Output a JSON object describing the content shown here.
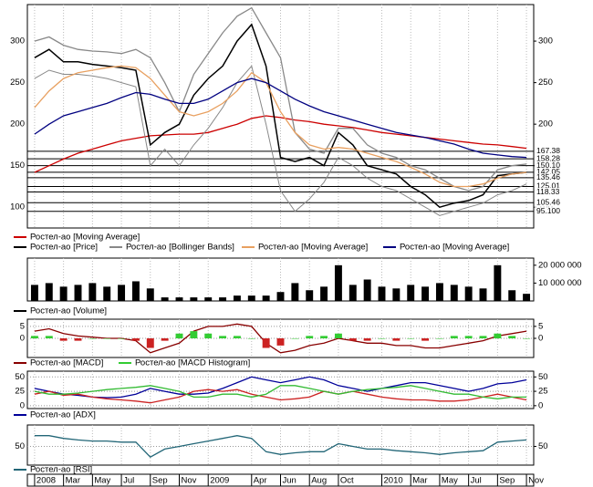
{
  "chart_data": [
    {
      "type": "line",
      "ylim": [
        75,
        344
      ],
      "yticks": [
        100,
        150,
        200,
        250,
        300
      ],
      "levels": [
        167.38,
        158.28,
        {
          "value": 150.1,
          "label": "150.10"
        },
        142.05,
        135.46,
        125.01,
        118.33,
        105.46,
        {
          "value": 95.1,
          "label": "95.100"
        }
      ],
      "series": [
        {
          "name": "Ростел-ао [Moving Average]",
          "color": "#cc0000",
          "values": [
            142,
            150,
            158,
            165,
            170,
            175,
            180,
            183,
            186,
            187,
            188,
            188,
            190,
            195,
            200,
            207,
            210,
            208,
            205,
            203,
            200,
            198,
            196,
            193,
            190,
            188,
            186,
            184,
            182,
            180,
            178,
            176,
            175,
            173,
            171
          ]
        },
        {
          "name": "Ростел-ао [Price]",
          "color": "#000000",
          "values": [
            280,
            290,
            275,
            275,
            272,
            270,
            268,
            265,
            175,
            190,
            200,
            235,
            255,
            270,
            300,
            320,
            270,
            160,
            155,
            160,
            150,
            190,
            175,
            150,
            145,
            140,
            125,
            115,
            100,
            105,
            108,
            115,
            138,
            140,
            142
          ]
        },
        {
          "name": "Ростел-ао [Bollinger Bands]",
          "color": "#888888",
          "values": [
            300,
            305,
            295,
            290,
            288,
            287,
            285,
            290,
            280,
            250,
            215,
            260,
            285,
            310,
            330,
            340,
            310,
            280,
            190,
            170,
            165,
            195,
            195,
            175,
            165,
            160,
            150,
            145,
            135,
            125,
            120,
            125,
            145,
            150,
            152
          ],
          "lower": [
            255,
            265,
            260,
            260,
            258,
            255,
            250,
            245,
            150,
            170,
            150,
            175,
            195,
            220,
            250,
            270,
            200,
            120,
            95,
            110,
            130,
            160,
            150,
            135,
            125,
            120,
            110,
            100,
            90,
            95,
            100,
            105,
            115,
            120,
            128
          ]
        },
        {
          "name": "Ростел-ао [Moving Average]",
          "color": "#e8a060",
          "values": [
            220,
            240,
            255,
            262,
            265,
            268,
            270,
            268,
            255,
            235,
            215,
            210,
            215,
            225,
            240,
            262,
            250,
            215,
            190,
            175,
            170,
            172,
            170,
            165,
            160,
            155,
            148,
            140,
            130,
            125,
            125,
            128,
            135,
            140,
            142
          ]
        },
        {
          "name": "Ростел-ао [Moving Average]",
          "color": "#000080",
          "values": [
            188,
            200,
            210,
            215,
            220,
            225,
            232,
            238,
            236,
            230,
            225,
            225,
            230,
            240,
            250,
            255,
            250,
            240,
            230,
            222,
            215,
            210,
            205,
            200,
            195,
            190,
            187,
            184,
            180,
            176,
            170,
            165,
            163,
            161,
            160
          ]
        }
      ]
    },
    {
      "type": "bar",
      "ylim": [
        0,
        24000000
      ],
      "yticks": [
        {
          "value": 10000000,
          "label": "10 000 000"
        },
        {
          "value": 20000000,
          "label": "20 000 000"
        }
      ],
      "series": [
        {
          "name": "Ростел-ао [Volume]",
          "color": "#000000",
          "values": [
            9000000,
            10000000,
            8000000,
            9000000,
            10000000,
            8000000,
            9000000,
            11000000,
            7000000,
            2000000,
            2000000,
            2000000,
            2000000,
            2000000,
            3000000,
            3000000,
            3000000,
            5000000,
            10000000,
            6000000,
            8000000,
            20000000,
            9000000,
            12000000,
            8000000,
            7000000,
            9000000,
            8000000,
            10000000,
            9000000,
            8000000,
            7000000,
            20000000,
            6000000,
            4000000
          ]
        }
      ]
    },
    {
      "type": "combo",
      "ylim": [
        -8,
        8
      ],
      "yticks": [
        0,
        5
      ],
      "series": [
        {
          "name": "Ростел-ао [MACD]",
          "color": "#880000",
          "values": [
            3,
            4,
            2,
            1,
            0.5,
            0,
            0,
            -1,
            -6,
            -4,
            -2,
            3,
            5,
            5,
            6,
            5,
            -2,
            -6,
            -5,
            -3,
            -2,
            0,
            -1,
            -2,
            -2,
            -3,
            -3,
            -4,
            -4,
            -3,
            -2,
            -1,
            1,
            2,
            3
          ]
        },
        {
          "name": "Ростел-ао [MACD Histogram]",
          "type": "bar",
          "color": "#33cc33",
          "negative_color": "#cc2222",
          "values": [
            1,
            1,
            -1,
            -1,
            0,
            0,
            0,
            -1,
            -4,
            -1,
            2,
            3,
            2,
            1,
            1,
            0,
            -4,
            -3,
            0,
            1,
            1,
            2,
            -1,
            -1,
            0,
            -1,
            0,
            -1,
            0,
            1,
            1,
            1,
            2,
            1,
            0
          ]
        }
      ]
    },
    {
      "type": "line",
      "ylim": [
        -5,
        60
      ],
      "yticks": [
        0,
        25,
        50
      ],
      "series": [
        {
          "name": "Ростел-ао [ADX]",
          "color": "#000099",
          "values": [
            30,
            25,
            20,
            18,
            15,
            14,
            15,
            20,
            30,
            25,
            20,
            20,
            22,
            30,
            40,
            50,
            45,
            40,
            45,
            50,
            45,
            35,
            30,
            25,
            30,
            35,
            40,
            40,
            35,
            30,
            25,
            30,
            38,
            40,
            45
          ]
        },
        {
          "color": "#cc2222",
          "values": [
            20,
            25,
            18,
            20,
            15,
            12,
            10,
            8,
            5,
            10,
            15,
            25,
            28,
            25,
            28,
            20,
            15,
            10,
            12,
            15,
            25,
            20,
            25,
            20,
            15,
            12,
            10,
            10,
            8,
            8,
            10,
            15,
            20,
            15,
            10
          ]
        },
        {
          "color": "#33bb33",
          "values": [
            25,
            20,
            20,
            22,
            25,
            28,
            30,
            32,
            35,
            30,
            25,
            15,
            15,
            20,
            20,
            15,
            20,
            35,
            35,
            30,
            25,
            20,
            25,
            28,
            30,
            32,
            35,
            30,
            25,
            20,
            20,
            15,
            12,
            15,
            15
          ]
        }
      ]
    },
    {
      "type": "line",
      "ylim": [
        15,
        90
      ],
      "yticks": [
        50
      ],
      "categories": [
        "2008",
        null,
        "Mar",
        null,
        "May",
        null,
        "Jul",
        null,
        "Sep",
        null,
        "Nov",
        null,
        "2009",
        null,
        null,
        "Apr",
        null,
        "Jun",
        null,
        "Aug",
        null,
        "Oct",
        null,
        null,
        "2010",
        null,
        "Mar",
        null,
        "May",
        null,
        "Jul",
        null,
        "Sep",
        null,
        "Nov"
      ],
      "series": [
        {
          "name": "Ростел-ао [RSI]",
          "color": "#226677",
          "values": [
            70,
            70,
            65,
            62,
            60,
            60,
            58,
            58,
            30,
            45,
            50,
            55,
            60,
            65,
            70,
            65,
            40,
            35,
            38,
            40,
            40,
            55,
            50,
            45,
            45,
            42,
            40,
            38,
            35,
            38,
            40,
            42,
            58,
            60,
            62
          ]
        }
      ]
    }
  ]
}
